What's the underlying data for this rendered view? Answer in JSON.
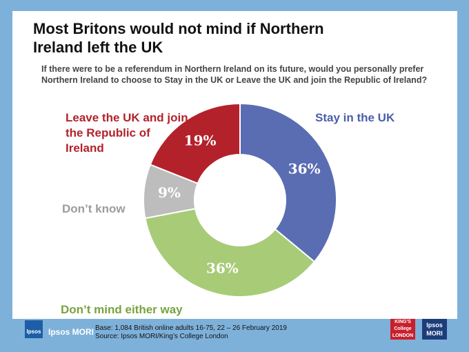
{
  "chart_data": {
    "type": "pie",
    "title": "Most Britons would not mind if Northern Ireland left the UK",
    "subtitle": "If there were to be a referendum in Northern Ireland on its future, would you personally prefer Northern Ireland to choose to Stay in the UK or Leave the UK and join the Republic of Ireland?",
    "categories": [
      "Stay in the UK",
      "Don’t mind either way",
      "Don’t know",
      "Leave the UK and join the Republic of Ireland"
    ],
    "values": [
      36,
      36,
      9,
      19
    ],
    "value_labels": [
      "36%",
      "36%",
      "9%",
      "19%"
    ],
    "colors": [
      "#5a6db3",
      "#a8cb78",
      "#bdbdbd",
      "#b3222b"
    ],
    "label_colors": [
      "#4a5eaa",
      "#77a33f",
      "#9c9c9c",
      "#b3222b"
    ]
  },
  "footer": {
    "base": "Base: 1,084 British online adults 16-75, 22 – 26 February 2019",
    "source": "Source: Ipsos MORI/King’s College London",
    "logo_small": "Ipsos",
    "logo_text": "Ipsos MORI",
    "kings_logo": "KING'S College LONDON",
    "ipsos_logo": "Ipsos MORI"
  }
}
